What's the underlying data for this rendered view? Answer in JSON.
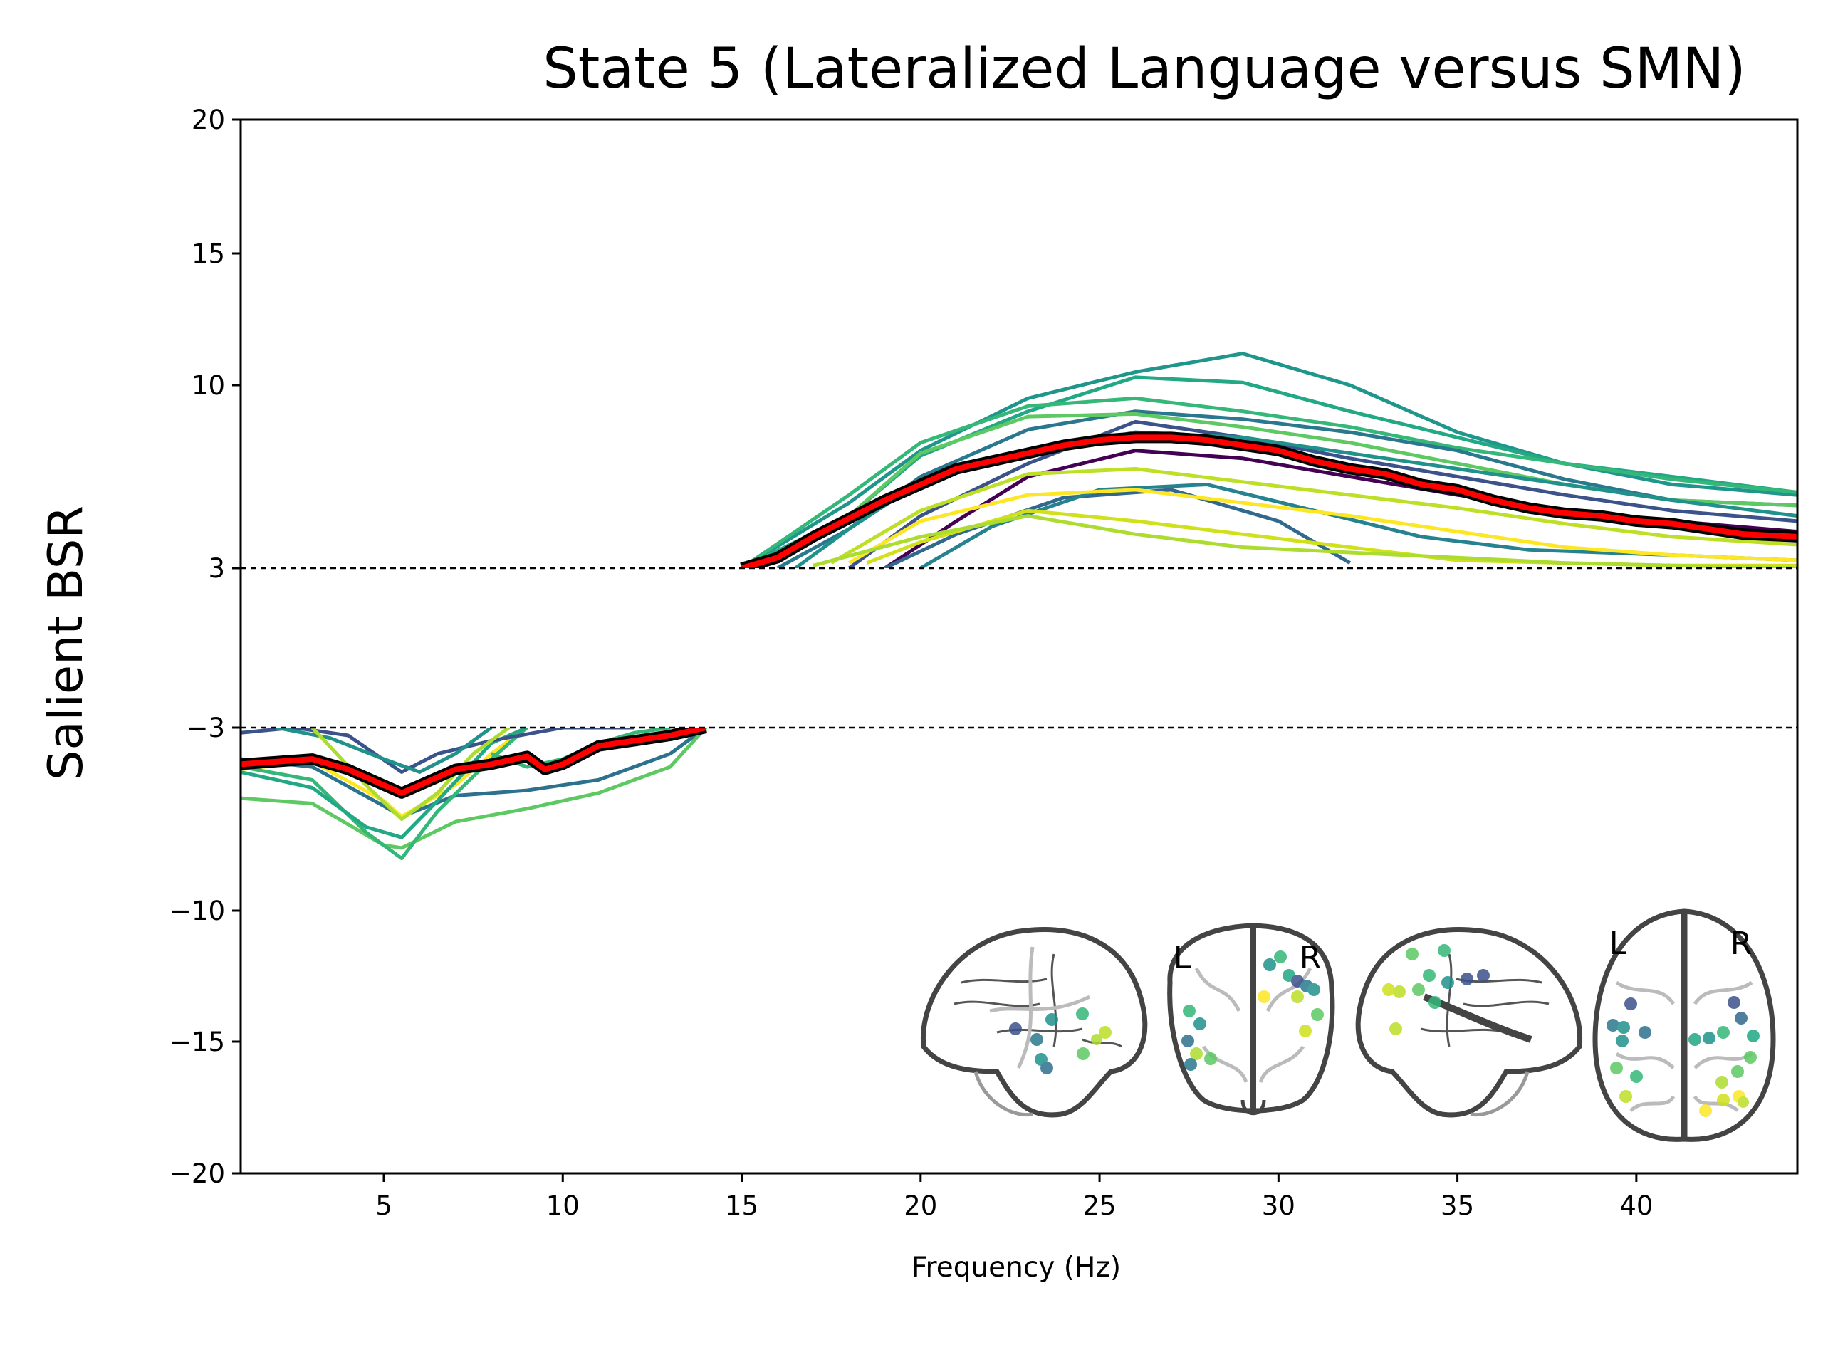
{
  "chart_data": {
    "type": "line",
    "title": "State 5 (Lateralized Language versus SMN)",
    "xlabel": "Frequency (Hz)",
    "ylabel": "Salient BSR",
    "xlim": [
      1,
      44.5
    ],
    "ylim": [
      -20,
      20
    ],
    "x_ticks": [
      5,
      10,
      15,
      20,
      25,
      30,
      35,
      40
    ],
    "y_ticks": [
      20,
      15,
      10,
      3,
      -3,
      -10,
      -15,
      -20
    ],
    "y_tick_labels": [
      "20",
      "15",
      "10",
      "3",
      "−3",
      "−10",
      "−15",
      "−20"
    ],
    "threshold_lines": [
      3,
      -3
    ],
    "grid": false,
    "legend": "none",
    "inset": {
      "description_labels": [
        "L",
        "R",
        "L",
        "R"
      ],
      "views": [
        "left-sagittal",
        "coronal",
        "right-sagittal",
        "axial"
      ]
    },
    "mean_series": {
      "color": "#ff0000",
      "outline_color": "#000000",
      "negative": {
        "x": [
          1,
          2,
          3,
          4,
          5,
          5.5,
          6,
          7,
          8,
          9,
          9.5,
          10,
          11,
          12,
          13,
          14
        ],
        "y": [
          -4.4,
          -4.3,
          -4.2,
          -4.6,
          -5.2,
          -5.5,
          -5.2,
          -4.6,
          -4.4,
          -4.1,
          -4.6,
          -4.4,
          -3.7,
          -3.5,
          -3.3,
          -3.0
        ]
      },
      "positive": {
        "x": [
          15,
          16,
          17,
          18,
          19,
          20,
          21,
          22,
          23,
          24,
          25,
          26,
          27,
          28,
          29,
          30,
          31,
          32,
          33,
          34,
          35,
          36,
          37,
          38,
          39,
          40,
          41,
          42,
          43,
          44.5
        ],
        "y": [
          3.0,
          3.4,
          4.2,
          4.9,
          5.6,
          6.2,
          6.8,
          7.1,
          7.4,
          7.7,
          7.9,
          8.0,
          8.0,
          7.9,
          7.7,
          7.5,
          7.1,
          6.8,
          6.6,
          6.2,
          6.0,
          5.6,
          5.3,
          5.1,
          5.0,
          4.8,
          4.7,
          4.5,
          4.3,
          4.2
        ]
      }
    },
    "series": [
      {
        "color": "#1f968b",
        "x": [
          15,
          18,
          20,
          23,
          26,
          29,
          32,
          35,
          38,
          41,
          44.5
        ],
        "y": [
          3.0,
          5.5,
          7.5,
          9.5,
          10.5,
          11.2,
          10.0,
          8.2,
          7.0,
          6.2,
          5.8
        ]
      },
      {
        "color": "#22a884",
        "x": [
          15,
          18,
          20,
          23,
          26,
          29,
          32,
          35,
          38,
          41,
          44.5
        ],
        "y": [
          3.0,
          5.0,
          7.3,
          9.0,
          10.3,
          10.1,
          9.0,
          8.0,
          7.0,
          6.5,
          5.9
        ]
      },
      {
        "color": "#35b779",
        "x": [
          15,
          18,
          20,
          23,
          26,
          29,
          32,
          35,
          38,
          41,
          44.5
        ],
        "y": [
          3.0,
          5.8,
          7.8,
          9.2,
          9.5,
          9.0,
          8.4,
          7.6,
          7.0,
          6.4,
          5.9
        ]
      },
      {
        "color": "#2a788e",
        "x": [
          16,
          18,
          20,
          23,
          26,
          29,
          32,
          35,
          38,
          41,
          44.5
        ],
        "y": [
          3.0,
          4.5,
          6.5,
          8.3,
          9.0,
          8.7,
          8.2,
          7.5,
          6.4,
          5.6,
          5.4
        ]
      },
      {
        "color": "#5ec962",
        "x": [
          15.5,
          18,
          20,
          23,
          26,
          29,
          32,
          35,
          38,
          41,
          44.5
        ],
        "y": [
          3.0,
          5.0,
          7.4,
          8.8,
          8.9,
          8.4,
          7.8,
          7.0,
          6.2,
          5.6,
          5.4
        ]
      },
      {
        "color": "#3b528b",
        "x": [
          18,
          20,
          23,
          26,
          29,
          32,
          35,
          38,
          41,
          44.5
        ],
        "y": [
          3.0,
          5.0,
          7.0,
          8.6,
          8.0,
          7.2,
          6.5,
          5.8,
          5.2,
          4.8
        ]
      },
      {
        "color": "#21918c",
        "x": [
          16.5,
          18,
          20,
          23,
          26,
          29,
          32,
          35,
          38,
          41,
          44.5
        ],
        "y": [
          3.0,
          4.5,
          6.3,
          7.4,
          8.2,
          8.0,
          7.4,
          6.8,
          6.2,
          5.6,
          5.0
        ]
      },
      {
        "color": "#440154",
        "x": [
          19,
          21,
          23,
          26,
          29,
          32,
          35,
          38,
          41,
          44.5
        ],
        "y": [
          3.0,
          4.8,
          6.5,
          7.5,
          7.2,
          6.5,
          5.8,
          5.2,
          4.8,
          4.4
        ]
      },
      {
        "color": "#31688e",
        "x": [
          19,
          21,
          24,
          27,
          30,
          32
        ],
        "y": [
          3.0,
          4.3,
          5.7,
          6.0,
          4.8,
          3.2
        ]
      },
      {
        "color": "#26828e",
        "x": [
          20,
          22,
          25,
          28,
          31,
          34,
          37,
          41,
          44.5
        ],
        "y": [
          3.0,
          4.6,
          6.0,
          6.2,
          5.2,
          4.2,
          3.7,
          3.5,
          3.3
        ]
      },
      {
        "color": "#fde725",
        "x": [
          18,
          20,
          23,
          26,
          29,
          32,
          35,
          38,
          41,
          44.5
        ],
        "y": [
          3.2,
          4.8,
          5.8,
          6.0,
          5.5,
          5.0,
          4.4,
          3.8,
          3.5,
          3.3
        ]
      },
      {
        "color": "#bddf26",
        "x": [
          17.5,
          20,
          23,
          26,
          29,
          32,
          35,
          38,
          41,
          44.5
        ],
        "y": [
          3.2,
          5.2,
          6.6,
          6.8,
          6.3,
          5.8,
          5.3,
          4.7,
          4.2,
          3.9
        ]
      },
      {
        "color": "#d0e11c",
        "x": [
          18.5,
          20,
          23,
          26,
          29,
          32,
          35,
          38,
          41,
          44.5
        ],
        "y": [
          3.2,
          4.0,
          5.2,
          4.8,
          4.3,
          3.8,
          3.3,
          3.2,
          3.1,
          3.1
        ]
      },
      {
        "color": "#addc30",
        "x": [
          17,
          20,
          23,
          26,
          29,
          32,
          35,
          38,
          41,
          44.5
        ],
        "y": [
          3.1,
          4.2,
          5.0,
          4.3,
          3.8,
          3.6,
          3.4,
          3.2,
          3.1,
          3.0
        ]
      },
      {
        "color": "#2c728e",
        "x": [
          1,
          3,
          5,
          5.5,
          7,
          9,
          11,
          13,
          14
        ],
        "y": [
          -4.2,
          -4.5,
          -6.0,
          -6.4,
          -5.6,
          -5.4,
          -5.0,
          -4.0,
          -3.0
        ]
      },
      {
        "color": "#fde725",
        "x": [
          1,
          3,
          5,
          5.5,
          7,
          8,
          9
        ],
        "y": [
          -4.6,
          -4.3,
          -5.8,
          -6.4,
          -5.2,
          -4.0,
          -3.0
        ]
      },
      {
        "color": "#5ec962",
        "x": [
          1,
          3,
          5,
          5.5,
          7,
          9,
          11,
          13,
          14
        ],
        "y": [
          -5.7,
          -5.9,
          -7.5,
          -7.6,
          -6.6,
          -6.1,
          -5.5,
          -4.5,
          -3.0
        ]
      },
      {
        "color": "#35b779",
        "x": [
          1,
          3,
          4.5,
          5.5,
          6.5,
          8,
          9
        ],
        "y": [
          -4.5,
          -5.0,
          -7.0,
          -8.0,
          -6.2,
          -4.2,
          -3.0
        ]
      },
      {
        "color": "#22a884",
        "x": [
          1,
          3,
          4.5,
          5.5,
          6.5,
          8,
          9
        ],
        "y": [
          -4.7,
          -5.3,
          -6.8,
          -7.2,
          -5.8,
          -3.6,
          -3.0
        ]
      },
      {
        "color": "#3b528b",
        "x": [
          1,
          2.5,
          4,
          5.5,
          6.5,
          8,
          10,
          12
        ],
        "y": [
          -3.2,
          -3.0,
          -3.3,
          -4.7,
          -4.0,
          -3.5,
          -3.0,
          -3.0
        ]
      },
      {
        "color": "#21918c",
        "x": [
          2,
          3.5,
          5,
          6,
          7,
          8
        ],
        "y": [
          -3.0,
          -3.4,
          -4.2,
          -4.7,
          -4.0,
          -3.0
        ]
      },
      {
        "color": "#addc30",
        "x": [
          3,
          4.5,
          5.5,
          6.5,
          7.5,
          8.5
        ],
        "y": [
          -3.0,
          -5.2,
          -6.5,
          -5.5,
          -4.0,
          -3.0
        ]
      },
      {
        "color": "#35b779",
        "x": [
          8,
          9,
          10,
          11,
          12,
          13
        ],
        "y": [
          -4.0,
          -4.5,
          -4.2,
          -3.6,
          -3.2,
          -3.0
        ]
      }
    ]
  }
}
